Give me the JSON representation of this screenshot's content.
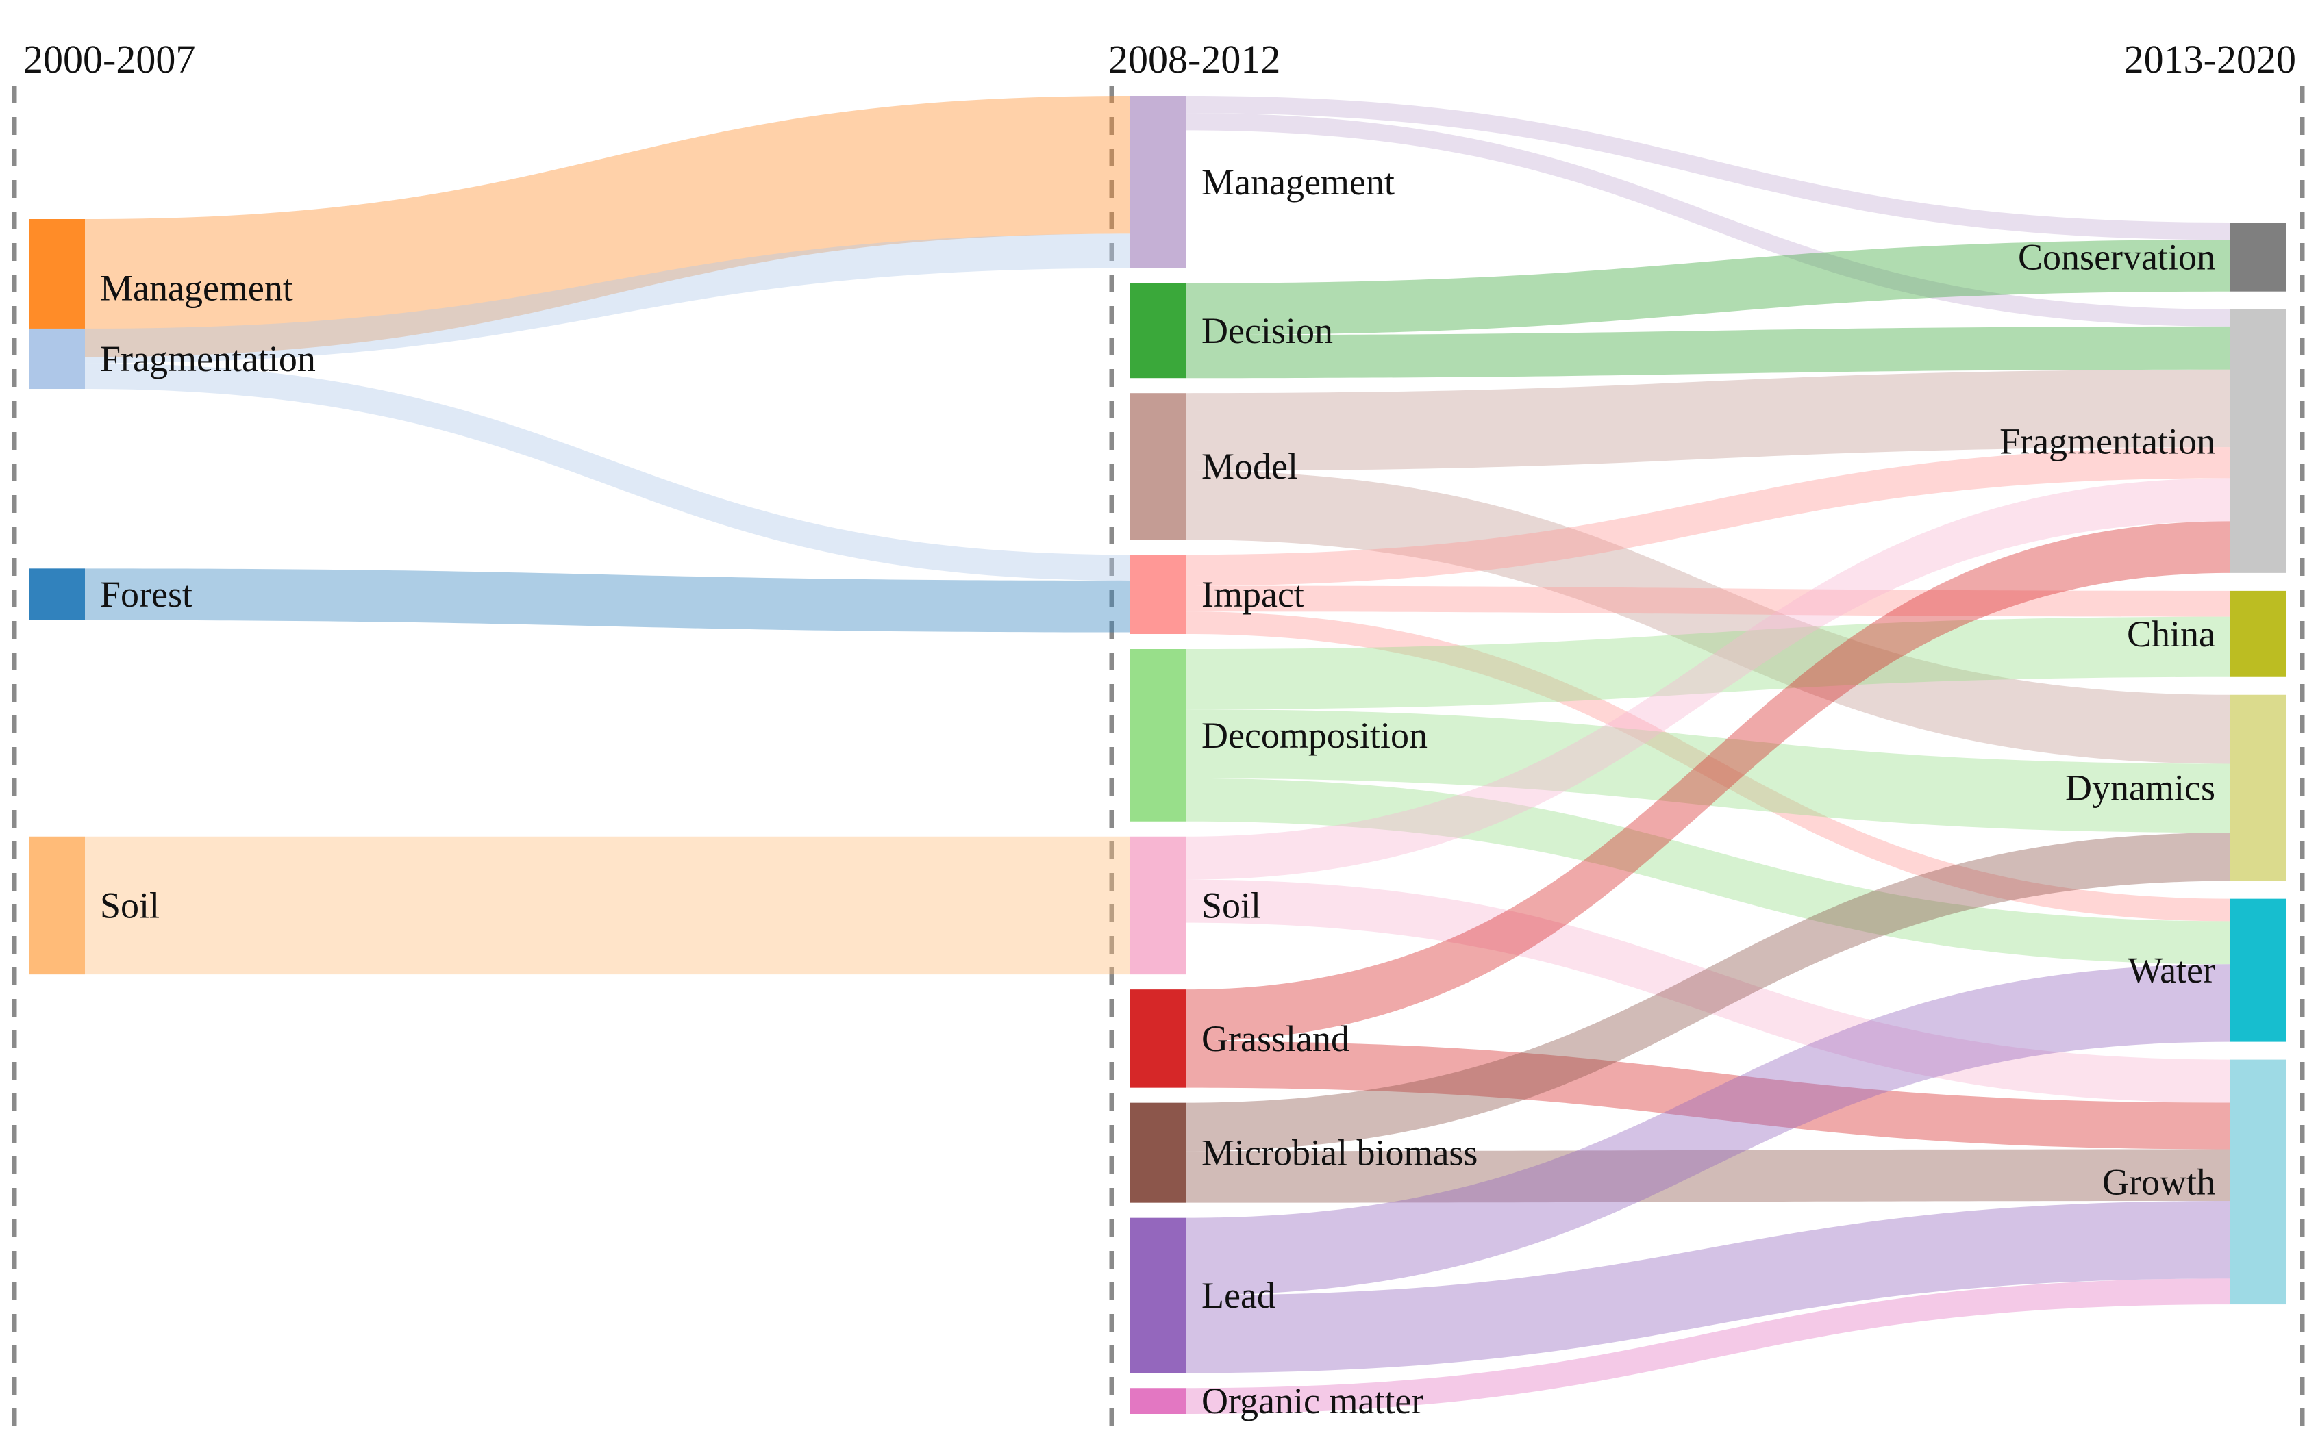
{
  "chart_data": {
    "type": "sankey",
    "title": "",
    "periods": [
      "2000-2007",
      "2008-2012",
      "2013-2020"
    ],
    "nodes": [
      {
        "id": "m0",
        "label": "Management",
        "period": 0,
        "color": "#ff8c28"
      },
      {
        "id": "fr0",
        "label": "Fragmentation",
        "period": 0,
        "color": "#aec7e8"
      },
      {
        "id": "fo0",
        "label": "Forest",
        "period": 0,
        "color": "#3182bd"
      },
      {
        "id": "s0",
        "label": "Soil",
        "period": 0,
        "color": "#ffbb78"
      },
      {
        "id": "m1",
        "label": "Management",
        "period": 1,
        "color": "#c5b0d5"
      },
      {
        "id": "de1",
        "label": "Decision",
        "period": 1,
        "color": "#3aa83a"
      },
      {
        "id": "mo1",
        "label": "Model",
        "period": 1,
        "color": "#c49c94"
      },
      {
        "id": "im1",
        "label": "Impact",
        "period": 1,
        "color": "#ff9896"
      },
      {
        "id": "dc1",
        "label": "Decomposition",
        "period": 1,
        "color": "#98df8a"
      },
      {
        "id": "s1",
        "label": "Soil",
        "period": 1,
        "color": "#f7b6d2"
      },
      {
        "id": "g1",
        "label": "Grassland",
        "period": 1,
        "color": "#d62728"
      },
      {
        "id": "mb1",
        "label": "Microbial biomass",
        "period": 1,
        "color": "#8c564b"
      },
      {
        "id": "l1",
        "label": "Lead",
        "period": 1,
        "color": "#9467bd"
      },
      {
        "id": "om1",
        "label": "Organic matter",
        "period": 1,
        "color": "#e377c2"
      },
      {
        "id": "c2",
        "label": "Conservation",
        "period": 2,
        "color": "#7f7f7f"
      },
      {
        "id": "fr2",
        "label": "Fragmentation",
        "period": 2,
        "color": "#c7c7c7"
      },
      {
        "id": "ch2",
        "label": "China",
        "period": 2,
        "color": "#bcbd22"
      },
      {
        "id": "dy2",
        "label": "Dynamics",
        "period": 2,
        "color": "#dbdb8d"
      },
      {
        "id": "w2",
        "label": "Water",
        "period": 2,
        "color": "#17becf"
      },
      {
        "id": "gr2",
        "label": "Growth",
        "period": 2,
        "color": "#9edae5"
      }
    ],
    "links": [
      {
        "source": "m0",
        "target": "m1",
        "value": 8.0
      },
      {
        "source": "fr0",
        "target": "m1",
        "value": 2.0
      },
      {
        "source": "fr0",
        "target": "im1",
        "value": 1.5
      },
      {
        "source": "fo0",
        "target": "im1",
        "value": 3.0
      },
      {
        "source": "s0",
        "target": "s1",
        "value": 8.0
      },
      {
        "source": "m1",
        "target": "c2",
        "value": 1.0
      },
      {
        "source": "m1",
        "target": "fr2",
        "value": 1.0
      },
      {
        "source": "de1",
        "target": "c2",
        "value": 3.0
      },
      {
        "source": "de1",
        "target": "fr2",
        "value": 2.5
      },
      {
        "source": "mo1",
        "target": "fr2",
        "value": 4.5
      },
      {
        "source": "mo1",
        "target": "dy2",
        "value": 4.0
      },
      {
        "source": "im1",
        "target": "fr2",
        "value": 1.8
      },
      {
        "source": "im1",
        "target": "ch2",
        "value": 1.5
      },
      {
        "source": "im1",
        "target": "w2",
        "value": 1.3
      },
      {
        "source": "dc1",
        "target": "ch2",
        "value": 3.5
      },
      {
        "source": "dc1",
        "target": "dy2",
        "value": 4.0
      },
      {
        "source": "dc1",
        "target": "w2",
        "value": 2.5
      },
      {
        "source": "s1",
        "target": "fr2",
        "value": 2.5
      },
      {
        "source": "s1",
        "target": "gr2",
        "value": 2.5
      },
      {
        "source": "g1",
        "target": "fr2",
        "value": 3.0
      },
      {
        "source": "g1",
        "target": "gr2",
        "value": 2.7
      },
      {
        "source": "mb1",
        "target": "dy2",
        "value": 2.8
      },
      {
        "source": "mb1",
        "target": "gr2",
        "value": 3.0
      },
      {
        "source": "l1",
        "target": "w2",
        "value": 4.5
      },
      {
        "source": "l1",
        "target": "gr2",
        "value": 4.5
      },
      {
        "source": "om1",
        "target": "gr2",
        "value": 1.5
      }
    ],
    "xlabel": "",
    "ylabel": ""
  }
}
